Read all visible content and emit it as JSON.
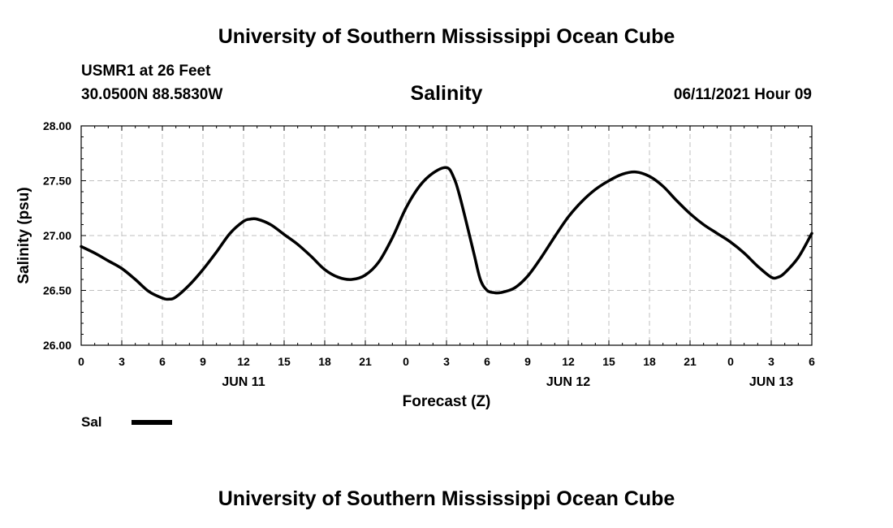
{
  "header": {
    "title": "University of Southern Mississippi Ocean Cube",
    "station": "USMR1 at 26 Feet",
    "coordinates": "30.0500N  88.5830W",
    "variable": "Salinity",
    "run_date": "06/11/2021 Hour 09"
  },
  "footer": {
    "title": "University of Southern Mississippi Ocean Cube"
  },
  "legend": {
    "label": "Sal"
  },
  "chart_data": {
    "type": "line",
    "title": "Salinity",
    "xlabel": "Forecast (Z)",
    "ylabel": "Salinity (psu)",
    "xlim": [
      0,
      54
    ],
    "ylim": [
      26.0,
      28.0
    ],
    "yticks": [
      "26.00",
      "26.50",
      "27.00",
      "27.50",
      "28.00"
    ],
    "xticks": [
      {
        "h": 0,
        "label": "0"
      },
      {
        "h": 3,
        "label": "3"
      },
      {
        "h": 6,
        "label": "6"
      },
      {
        "h": 9,
        "label": "9"
      },
      {
        "h": 12,
        "label": "12"
      },
      {
        "h": 15,
        "label": "15"
      },
      {
        "h": 18,
        "label": "18"
      },
      {
        "h": 21,
        "label": "21"
      },
      {
        "h": 24,
        "label": "0"
      },
      {
        "h": 27,
        "label": "3"
      },
      {
        "h": 30,
        "label": "6"
      },
      {
        "h": 33,
        "label": "9"
      },
      {
        "h": 36,
        "label": "12"
      },
      {
        "h": 39,
        "label": "15"
      },
      {
        "h": 42,
        "label": "18"
      },
      {
        "h": 45,
        "label": "21"
      },
      {
        "h": 48,
        "label": "0"
      },
      {
        "h": 51,
        "label": "3"
      },
      {
        "h": 54,
        "label": "6"
      }
    ],
    "day_labels": [
      {
        "h": 12,
        "label": "JUN 11"
      },
      {
        "h": 36,
        "label": "JUN 12"
      },
      {
        "h": 51,
        "label": "JUN 13"
      }
    ],
    "series": [
      {
        "name": "Sal",
        "color": "#000000",
        "x": [
          0,
          1,
          2,
          3,
          4,
          5,
          6,
          6.5,
          7,
          8,
          9,
          10,
          11,
          12,
          12.5,
          13,
          14,
          15,
          16,
          17,
          18,
          19,
          20,
          21,
          22,
          23,
          24,
          25,
          26,
          27,
          27.5,
          28,
          29,
          29.5,
          30,
          30.5,
          31,
          32,
          33,
          34,
          35,
          36,
          37,
          38,
          39,
          40,
          41,
          42,
          43,
          44,
          45,
          46,
          47,
          48,
          49,
          50,
          51,
          51.5,
          52,
          53,
          54
        ],
        "values": [
          26.9,
          26.84,
          26.77,
          26.7,
          26.6,
          26.49,
          26.43,
          26.42,
          26.44,
          26.55,
          26.69,
          26.85,
          27.02,
          27.13,
          27.15,
          27.15,
          27.1,
          27.01,
          26.92,
          26.81,
          26.69,
          26.62,
          26.6,
          26.64,
          26.76,
          26.98,
          27.25,
          27.45,
          27.57,
          27.62,
          27.54,
          27.35,
          26.85,
          26.6,
          26.5,
          26.48,
          26.48,
          26.52,
          26.63,
          26.8,
          26.99,
          27.17,
          27.31,
          27.42,
          27.5,
          27.56,
          27.58,
          27.54,
          27.45,
          27.32,
          27.2,
          27.1,
          27.02,
          26.94,
          26.84,
          26.72,
          26.62,
          26.62,
          26.66,
          26.8,
          27.02
        ]
      }
    ]
  }
}
